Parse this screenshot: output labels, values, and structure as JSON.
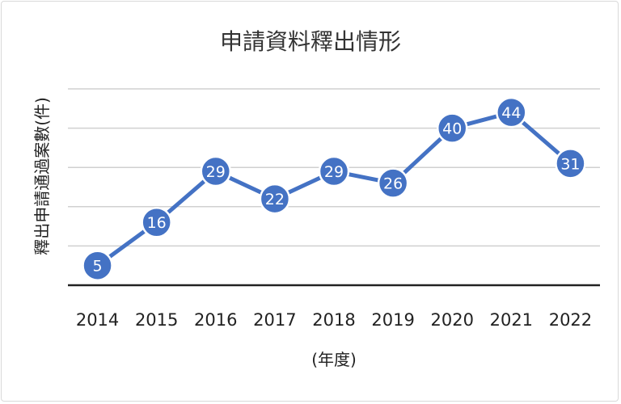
{
  "chart_data": {
    "type": "line",
    "title": "申請資料釋出情形",
    "xlabel": "(年度)",
    "ylabel": "釋出申請通過案數(件)",
    "categories": [
      "2014",
      "2015",
      "2016",
      "2017",
      "2018",
      "2019",
      "2020",
      "2021",
      "2022"
    ],
    "series": [
      {
        "values": [
          5,
          16,
          29,
          22,
          29,
          26,
          40,
          44,
          31
        ]
      }
    ],
    "ylim": [
      0,
      50
    ],
    "yticks": [
      0,
      10,
      20,
      30,
      40,
      50
    ],
    "y_tick_labels_shown": false,
    "grid": true,
    "legend": "none",
    "data_labels": true,
    "colors": {
      "line": "#4472c4",
      "marker": "#4472c4",
      "marker_border": "#ffffff",
      "grid": "#d0d0d0",
      "axis": "#222222"
    }
  }
}
